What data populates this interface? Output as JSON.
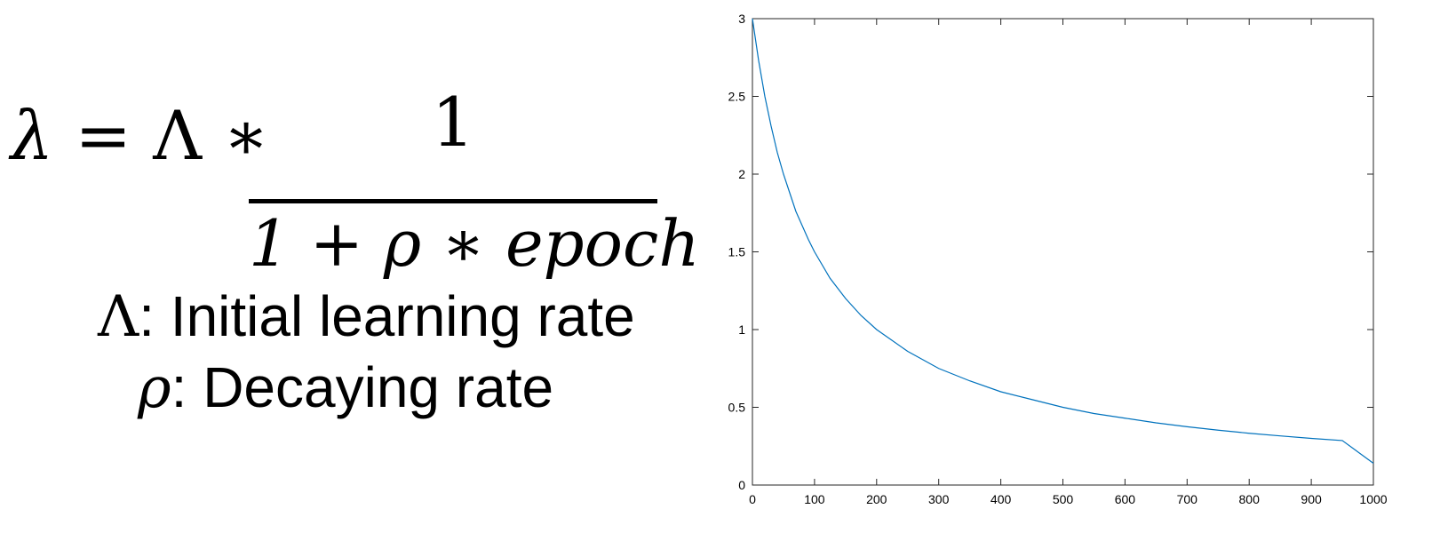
{
  "formula": {
    "lhs_symbol": "λ",
    "equals": "=",
    "coef_symbol": "Λ",
    "times": "∗",
    "numerator": "1",
    "denominator": "1 + ρ ∗ epoch"
  },
  "legend": [
    {
      "symbol": "Λ",
      "text": ": Initial learning rate"
    },
    {
      "symbol": "ρ",
      "text": ": Decaying rate"
    }
  ],
  "chart_data": {
    "type": "line",
    "title": "",
    "xlabel": "",
    "ylabel": "",
    "xlim": [
      0,
      1000
    ],
    "ylim": [
      0,
      3
    ],
    "xticks": [
      "0",
      "100",
      "200",
      "300",
      "400",
      "500",
      "600",
      "700",
      "800",
      "900",
      "1000"
    ],
    "yticks": [
      "0",
      "0.5",
      "1",
      "1.5",
      "2",
      "2.5",
      "3"
    ],
    "grid": false,
    "series": [
      {
        "color": "#0072BD",
        "x": [
          0,
          10,
          20,
          30,
          40,
          50,
          60,
          70,
          80,
          90,
          100,
          125,
          150,
          175,
          200,
          250,
          300,
          350,
          400,
          450,
          500,
          550,
          600,
          650,
          700,
          750,
          800,
          850,
          900,
          950,
          1000
        ],
        "y": [
          3.0,
          2.73,
          2.5,
          2.31,
          2.14,
          2.0,
          1.88,
          1.76,
          1.67,
          1.58,
          1.5,
          1.33,
          1.2,
          1.09,
          1.0,
          0.86,
          0.75,
          0.67,
          0.6,
          0.55,
          0.5,
          0.46,
          0.43,
          0.4,
          0.375,
          0.353,
          0.333,
          0.316,
          0.3,
          0.286,
          0.14
        ]
      }
    ]
  }
}
